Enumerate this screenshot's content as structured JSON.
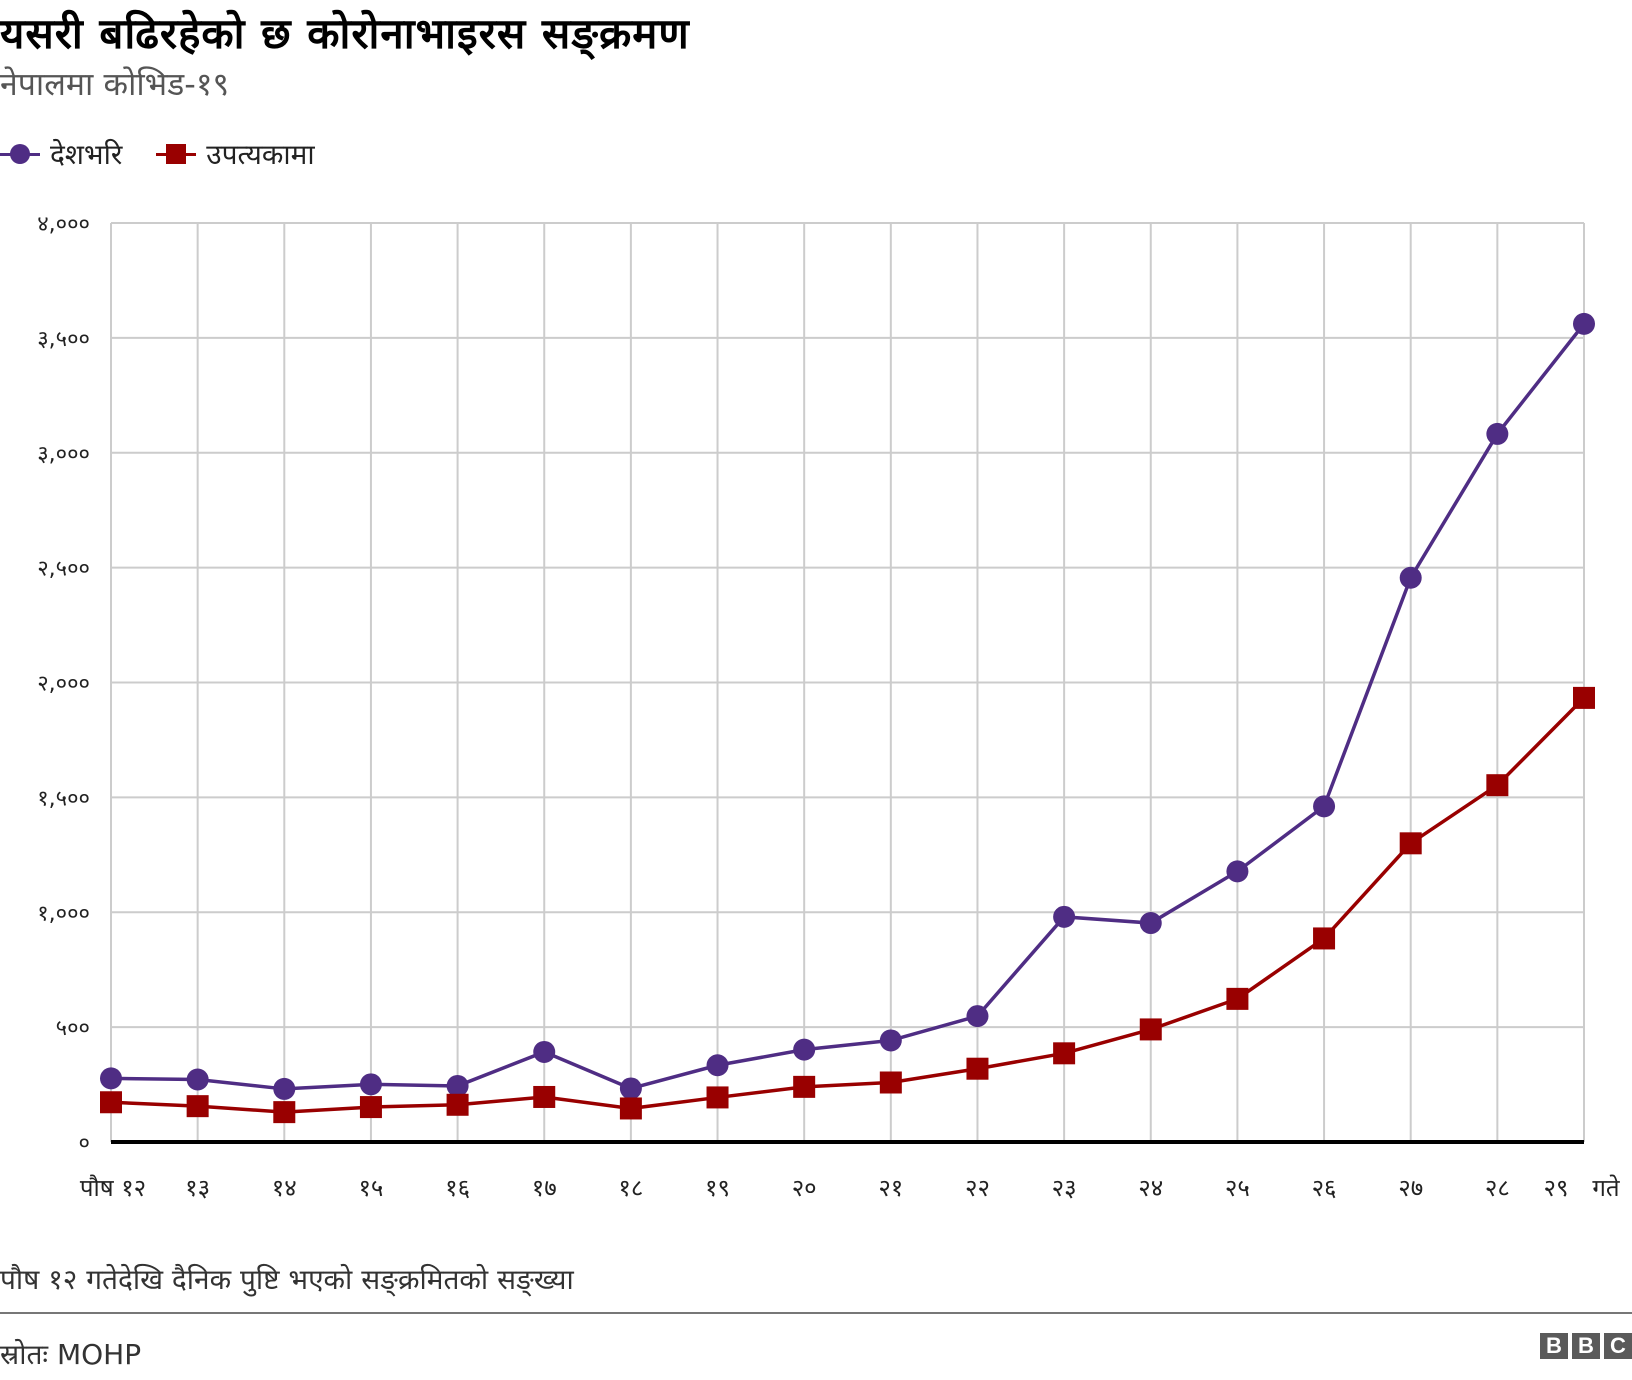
{
  "header": {
    "title": "यसरी बढिरहेको छ कोरोनाभाइरस सङ्क्रमण",
    "subtitle": "नेपालमा कोभिड-१९"
  },
  "legend": [
    {
      "label": "देशभरि",
      "marker": "circle",
      "color": "#4f2d84"
    },
    {
      "label": "उपत्यकामा",
      "marker": "square",
      "color": "#990000"
    }
  ],
  "footer": {
    "note": "पौष १२ गतेदेखि दैनिक पुष्टि भएको सङ्क्रमितको सङ्ख्या",
    "source": "स्रोतः MOHP",
    "logo_letters": [
      "B",
      "B",
      "C"
    ]
  },
  "colors": {
    "series_nationwide": "#4f2d84",
    "series_valley": "#990000",
    "grid": "#cccccc",
    "axis": "#000000"
  },
  "chart_data": {
    "type": "line",
    "title": "यसरी बढिरहेको छ कोरोनाभाइरस सङ्क्रमण",
    "subtitle": "नेपालमा कोभिड-१९",
    "xlabel": "",
    "ylabel": "",
    "categories": [
      "पौष १२",
      "१३",
      "१४",
      "१५",
      "१६",
      "१७",
      "१८",
      "१९",
      "२०",
      "२१",
      "२२",
      "२३",
      "२४",
      "२५",
      "२६",
      "२७",
      "२८",
      "२९ गते"
    ],
    "x_tick_labels": [
      "पौष १२",
      "१३",
      "१४",
      "१५",
      "१६",
      "१७",
      "१८",
      "१९",
      "२०",
      "२१",
      "२२",
      "२३",
      "२४",
      "२५",
      "२६",
      "२७",
      "२८",
      "२९",
      "गते"
    ],
    "series": [
      {
        "name": "देशभरि",
        "marker": "circle",
        "color": "#4f2d84",
        "values": [
          277,
          272,
          231,
          251,
          244,
          392,
          233,
          334,
          402,
          442,
          548,
          980,
          953,
          1178,
          1461,
          2456,
          3082,
          3561
        ]
      },
      {
        "name": "उपत्यकामा",
        "marker": "square",
        "color": "#990000",
        "values": [
          173,
          156,
          130,
          152,
          162,
          196,
          146,
          194,
          240,
          259,
          319,
          386,
          490,
          623,
          886,
          1300,
          1553,
          1933
        ]
      }
    ],
    "ylim": [
      0,
      4000
    ],
    "yticks": [
      0,
      500,
      1000,
      1500,
      2000,
      2500,
      3000,
      3500,
      4000
    ],
    "ytick_labels": [
      "०",
      "५००",
      "१,०००",
      "१,५००",
      "२,०००",
      "२,५००",
      "३,०००",
      "३,५००",
      "४,०००"
    ],
    "grid": true,
    "legend_position": "top-left",
    "footnote": "पौष १२ गतेदेखि दैनिक पुष्टि भएको सङ्क्रमितको सङ्ख्या",
    "source": "MOHP"
  }
}
